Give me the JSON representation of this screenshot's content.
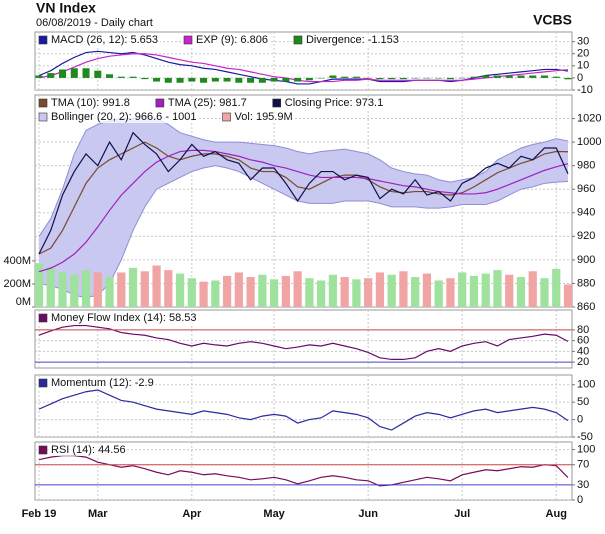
{
  "header": {
    "title": "VN Index",
    "subtitle": "06/08/2019 - Daily chart",
    "source": "VCBS"
  },
  "chart_data": [
    {
      "type": "line",
      "ylim": [
        -10,
        38
      ],
      "yticks": [
        30,
        20,
        10,
        0,
        -10
      ],
      "grid": true,
      "series": [
        {
          "name": "MACD (26, 12): 5.653",
          "color": "#1a1aa0",
          "values": [
            2,
            6,
            12,
            17,
            21,
            22,
            21,
            20,
            21,
            19,
            16,
            13,
            11,
            10,
            8,
            7,
            5,
            3,
            1,
            -1,
            -2,
            -3,
            -5,
            -5,
            -3,
            -1,
            -1,
            -1,
            -1,
            -3,
            -3,
            -3,
            -2,
            -2,
            -2,
            -3,
            -2,
            0,
            2,
            3,
            4,
            5,
            6,
            7,
            7,
            5.653
          ]
        },
        {
          "name": "EXP (9): 6.806",
          "color": "#cc22cc",
          "values": [
            0,
            2,
            5,
            9,
            13,
            16,
            18,
            19,
            20,
            20,
            19,
            17,
            15,
            13,
            12,
            10,
            8,
            7,
            5,
            3,
            1,
            0,
            -2,
            -3,
            -3,
            -3,
            -2,
            -2,
            -1,
            -2,
            -2,
            -2,
            -2,
            -2,
            -2,
            -2,
            -2,
            -1,
            0,
            1,
            2,
            3,
            4,
            5,
            6,
            6.806
          ]
        },
        {
          "name": "Divergence: -1.153",
          "color": "#1e8a1e",
          "type": "bar",
          "values": [
            2,
            4,
            7,
            8,
            8,
            6,
            3,
            1,
            1,
            -1,
            -3,
            -4,
            -4,
            -3,
            -4,
            -3,
            -3,
            -4,
            -4,
            -4,
            -3,
            -3,
            -3,
            -2,
            0,
            2,
            1,
            1,
            0,
            -1,
            -1,
            -1,
            0,
            0,
            0,
            -1,
            0,
            1,
            2,
            2,
            2,
            2,
            2,
            2,
            1,
            -1.153
          ]
        }
      ]
    },
    {
      "type": "line",
      "ylim": [
        860,
        1040
      ],
      "yticks": [
        860,
        880,
        900,
        920,
        940,
        960,
        980,
        1000,
        1020
      ],
      "grid": true,
      "y2lim": [
        0,
        1840
      ],
      "y2ticks": [
        {
          "value": 0,
          "label": "0M"
        },
        {
          "value": 200,
          "label": "200M"
        },
        {
          "value": 400,
          "label": "400M"
        }
      ],
      "series": [
        {
          "name": "TMA (10): 991.8",
          "color": "#7a4a2a",
          "values": [
            905,
            910,
            925,
            945,
            965,
            978,
            985,
            990,
            995,
            1000,
            995,
            988,
            985,
            988,
            990,
            990,
            988,
            985,
            978,
            975,
            975,
            970,
            962,
            960,
            965,
            970,
            972,
            972,
            968,
            962,
            958,
            957,
            958,
            958,
            956,
            955,
            957,
            962,
            968,
            974,
            978,
            982,
            985,
            990,
            992,
            991.8
          ]
        },
        {
          "name": "TMA (25): 981.7",
          "color": "#a020c0",
          "values": [
            890,
            893,
            898,
            905,
            915,
            928,
            942,
            955,
            965,
            975,
            983,
            988,
            992,
            993,
            993,
            992,
            990,
            988,
            985,
            983,
            980,
            978,
            975,
            972,
            970,
            970,
            970,
            970,
            969,
            967,
            965,
            963,
            962,
            960,
            958,
            957,
            956,
            956,
            957,
            960,
            964,
            968,
            972,
            976,
            979,
            981.7
          ]
        },
        {
          "name": "Closing Price: 973.1",
          "color": "#10104a",
          "values": [
            905,
            925,
            955,
            975,
            990,
            980,
            1000,
            985,
            1008,
            998,
            990,
            975,
            985,
            998,
            988,
            992,
            985,
            982,
            968,
            978,
            978,
            965,
            950,
            965,
            975,
            975,
            968,
            972,
            970,
            952,
            960,
            956,
            968,
            955,
            958,
            950,
            965,
            970,
            978,
            982,
            978,
            988,
            985,
            995,
            995,
            973.1
          ]
        }
      ],
      "bollinger": {
        "name": "Bollinger (20, 2): 966.6 - 1001",
        "color": "#c8c8f0",
        "edge_color": "#8e8ed6",
        "upper": [
          920,
          935,
          960,
          990,
          1010,
          1015,
          1018,
          1020,
          1020,
          1022,
          1020,
          1015,
          1008,
          1005,
          1002,
          1000,
          1000,
          1000,
          999,
          998,
          997,
          995,
          992,
          990,
          992,
          993,
          994,
          992,
          990,
          985,
          978,
          975,
          973,
          972,
          968,
          966,
          968,
          970,
          975,
          985,
          990,
          995,
          998,
          1000,
          1003,
          1001
        ],
        "lower": [
          880,
          878,
          875,
          870,
          868,
          870,
          880,
          900,
          925,
          945,
          960,
          965,
          970,
          975,
          978,
          980,
          978,
          975,
          970,
          965,
          960,
          955,
          950,
          948,
          948,
          948,
          950,
          950,
          950,
          948,
          945,
          945,
          945,
          944,
          944,
          945,
          947,
          947,
          947,
          950,
          955,
          960,
          962,
          965,
          966,
          966.6
        ]
      },
      "volume": {
        "name": "Vol: 195.9M",
        "axis": "y2",
        "up_color": "#9ee29e",
        "down_color": "#f0a4a4",
        "values": [
          380,
          350,
          300,
          280,
          320,
          300,
          260,
          300,
          340,
          310,
          360,
          320,
          290,
          250,
          220,
          230,
          270,
          300,
          260,
          280,
          240,
          270,
          310,
          250,
          230,
          280,
          260,
          240,
          250,
          300,
          280,
          310,
          260,
          290,
          230,
          250,
          300,
          270,
          290,
          320,
          280,
          260,
          310,
          250,
          330,
          195.9
        ]
      }
    },
    {
      "type": "line",
      "ylim": [
        9,
        117
      ],
      "yticks": [
        80,
        60,
        40,
        20
      ],
      "grid": true,
      "hlines": [
        {
          "value": 80,
          "color": "#d04848"
        },
        {
          "value": 20,
          "color": "#4848d0"
        }
      ],
      "series": [
        {
          "name": "Money Flow Index (14): 58.53",
          "color": "#6a0a6a",
          "values": [
            70,
            78,
            85,
            88,
            88,
            85,
            82,
            75,
            72,
            70,
            65,
            62,
            55,
            50,
            55,
            52,
            50,
            55,
            58,
            55,
            50,
            45,
            48,
            52,
            50,
            55,
            50,
            45,
            38,
            28,
            25,
            25,
            28,
            40,
            45,
            40,
            50,
            55,
            58,
            50,
            62,
            65,
            68,
            72,
            70,
            58.53
          ]
        }
      ]
    },
    {
      "type": "line",
      "ylim": [
        -50,
        128
      ],
      "yticks": [
        100,
        50,
        0,
        -50
      ],
      "grid": true,
      "series": [
        {
          "name": "Momentum (12): -2.9",
          "color": "#2a2aa0",
          "values": [
            30,
            45,
            60,
            70,
            80,
            85,
            70,
            55,
            50,
            40,
            30,
            25,
            20,
            15,
            25,
            20,
            15,
            5,
            0,
            10,
            15,
            10,
            -10,
            0,
            5,
            25,
            20,
            15,
            5,
            -20,
            -30,
            -10,
            10,
            20,
            15,
            5,
            15,
            25,
            30,
            20,
            25,
            30,
            35,
            30,
            20,
            -2.9
          ]
        }
      ]
    },
    {
      "type": "line",
      "ylim": [
        0,
        115
      ],
      "yticks": [
        100,
        70,
        30,
        0
      ],
      "grid": true,
      "hlines": [
        {
          "value": 70,
          "color": "#d04848"
        },
        {
          "value": 30,
          "color": "#4848d0"
        }
      ],
      "categories": [
        "Feb 19",
        null,
        null,
        null,
        null,
        "Mar",
        null,
        null,
        null,
        null,
        null,
        null,
        null,
        "Apr",
        null,
        null,
        null,
        null,
        null,
        null,
        "May",
        null,
        null,
        null,
        null,
        null,
        null,
        null,
        "Jun",
        null,
        null,
        null,
        null,
        null,
        null,
        null,
        "Jul",
        null,
        null,
        null,
        null,
        null,
        null,
        null,
        "Aug",
        null
      ],
      "series": [
        {
          "name": "RSI (14): 44.56",
          "color": "#7a0a5a",
          "values": [
            80,
            85,
            88,
            88,
            85,
            75,
            70,
            65,
            68,
            62,
            55,
            50,
            58,
            55,
            50,
            52,
            48,
            45,
            40,
            42,
            45,
            40,
            32,
            38,
            45,
            48,
            45,
            40,
            38,
            28,
            30,
            35,
            40,
            45,
            42,
            38,
            50,
            55,
            60,
            58,
            62,
            66,
            65,
            70,
            68,
            44.56
          ]
        }
      ]
    }
  ]
}
